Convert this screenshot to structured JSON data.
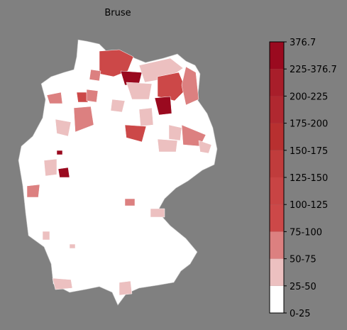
{
  "title": "Bruse",
  "colorbar": {
    "labels": [
      "0-25",
      "25-50",
      "50-75",
      "75-100",
      "100-125",
      "125-150",
      "150-175",
      "175-200",
      "200-225",
      "225-376.7",
      "376.7"
    ],
    "colors": [
      "#ffffff",
      "#ecc0c0",
      "#dc8080",
      "#cc4848",
      "#c84444",
      "#c03c3c",
      "#b83030",
      "#b02830",
      "#a81e2a",
      "#9a0a1f"
    ]
  }
}
